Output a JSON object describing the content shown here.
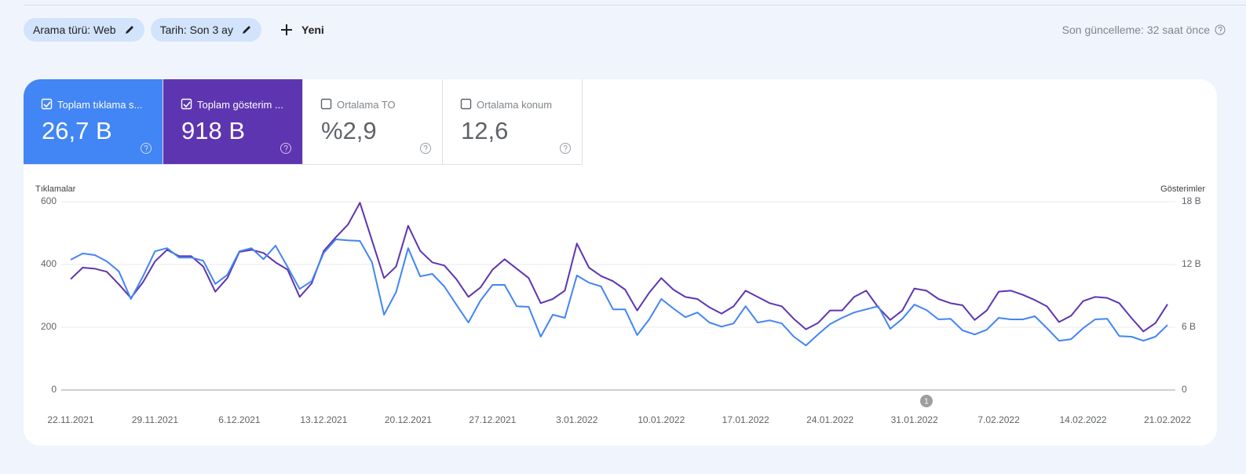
{
  "toolbar": {
    "filters": [
      "Arama türü: Web",
      "Tarih: Son 3 ay"
    ],
    "new_button": "Yeni",
    "last_update": "Son güncelleme: 32 saat önce"
  },
  "metrics": [
    {
      "label": "Toplam tıklama s...",
      "value": "26,7 B",
      "checked": true,
      "color": "#4285f4"
    },
    {
      "label": "Toplam gösterim ...",
      "value": "918 B",
      "checked": true,
      "color": "#5e35b1"
    },
    {
      "label": "Ortalama TO",
      "value": "%2,9",
      "checked": false,
      "color": "#ffffff"
    },
    {
      "label": "Ortalama konum",
      "value": "12,6",
      "checked": false,
      "color": "#ffffff"
    }
  ],
  "chart_data": {
    "type": "line",
    "y_label": "Tıklamalar",
    "y2_label": "Gösterimler",
    "categories": [
      "22.11.2021",
      null,
      null,
      null,
      null,
      null,
      null,
      "29.11.2021",
      null,
      null,
      null,
      null,
      null,
      null,
      "6.12.2021",
      null,
      null,
      null,
      null,
      null,
      null,
      "13.12.2021",
      null,
      null,
      null,
      null,
      null,
      null,
      "20.12.2021",
      null,
      null,
      null,
      null,
      null,
      null,
      "27.12.2021",
      null,
      null,
      null,
      null,
      null,
      null,
      "3.01.2022",
      null,
      null,
      null,
      null,
      null,
      null,
      "10.01.2022",
      null,
      null,
      null,
      null,
      null,
      null,
      "17.01.2022",
      null,
      null,
      null,
      null,
      null,
      null,
      "24.01.2022",
      null,
      null,
      null,
      null,
      null,
      null,
      "31.01.2022",
      null,
      null,
      null,
      null,
      null,
      null,
      "7.02.2022",
      null,
      null,
      null,
      null,
      null,
      null,
      "14.02.2022",
      null,
      null,
      null,
      null,
      null,
      null,
      "21.02.2022"
    ],
    "series": [
      {
        "name": "Tıklamalar",
        "color": "#4285f4",
        "values": [
          415,
          435,
          430,
          410,
          378,
          290,
          362,
          442,
          452,
          422,
          422,
          412,
          338,
          367,
          442,
          452,
          417,
          460,
          392,
          322,
          347,
          437,
          480,
          477,
          475,
          407,
          240,
          312,
          452,
          362,
          370,
          330,
          272,
          215,
          285,
          335,
          335,
          267,
          265,
          170,
          240,
          230,
          365,
          342,
          330,
          257,
          257,
          175,
          225,
          290,
          260,
          232,
          247,
          215,
          202,
          212,
          267,
          215,
          222,
          212,
          170,
          142,
          177,
          210,
          230,
          247,
          257,
          267,
          195,
          227,
          272,
          255,
          225,
          227,
          190,
          177,
          192,
          230,
          225,
          225,
          235,
          197,
          157,
          162,
          197,
          225,
          227,
          172,
          170,
          157,
          170,
          207
        ]
      },
      {
        "name": "Gösterimler",
        "color": "#5e35b1",
        "axis": "y2",
        "values": [
          10.6,
          11.7,
          11.6,
          11.3,
          10.1,
          8.8,
          10.3,
          12.3,
          13.4,
          12.8,
          12.8,
          11.8,
          9.4,
          10.7,
          13.2,
          13.4,
          13.1,
          12.2,
          11.5,
          8.9,
          10.2,
          13.3,
          14.6,
          15.8,
          17.9,
          14.3,
          10.7,
          11.8,
          15.7,
          13.3,
          12.2,
          11.9,
          10.6,
          8.9,
          9.8,
          11.5,
          12.5,
          11.6,
          10.7,
          8.3,
          8.7,
          9.5,
          14.0,
          11.7,
          10.9,
          10.4,
          9.6,
          7.6,
          9.3,
          10.7,
          9.6,
          8.9,
          8.7,
          7.9,
          7.3,
          8.0,
          9.5,
          8.9,
          8.3,
          8.0,
          6.8,
          5.8,
          6.4,
          7.6,
          7.6,
          8.9,
          9.5,
          7.9,
          6.7,
          7.6,
          9.7,
          9.5,
          8.7,
          8.3,
          8.1,
          6.7,
          7.6,
          9.4,
          9.5,
          9.1,
          8.6,
          8.0,
          6.5,
          7.1,
          8.5,
          8.9,
          8.8,
          8.3,
          6.9,
          5.6,
          6.4,
          8.2
        ]
      }
    ],
    "ylim": [
      0,
      600
    ],
    "yticks": [
      0,
      200,
      400,
      600
    ],
    "y2lim": [
      0,
      18
    ],
    "y2ticks": [
      0,
      {
        "value": 6,
        "label": "6 B"
      },
      {
        "value": 12,
        "label": "12 B"
      },
      {
        "value": 18,
        "label": "18 B"
      }
    ],
    "grid": true,
    "annotations": [
      {
        "x_index": 71,
        "label": "1"
      }
    ]
  }
}
